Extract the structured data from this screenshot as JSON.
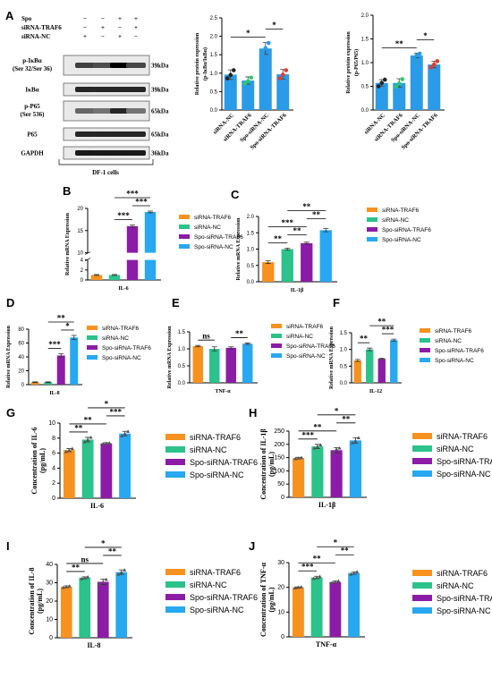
{
  "colors": {
    "orange": "#F7921E",
    "green": "#2BC28B",
    "purple": "#8C1CA7",
    "blue": "#27A8F0",
    "panelA": "#2A9BE8",
    "panelA_green": "#2AC96E",
    "panelA_red": "#E8392C"
  },
  "panelA": {
    "letter": "A",
    "blot": {
      "treat_labels": [
        "Spo",
        "siRNA-TRAF6",
        "siRNA-NC"
      ],
      "treat_signs": [
        [
          "−",
          "−",
          "+",
          "+"
        ],
        [
          "−",
          "+",
          "−",
          "+"
        ],
        [
          "+",
          "−",
          "+",
          "−"
        ]
      ],
      "bands": [
        {
          "name": "p-IκBα",
          "sub": "(Ser 32/Ser 36)",
          "kda": "39kDa"
        },
        {
          "name": "IκBα",
          "sub": "",
          "kda": "39kDa"
        },
        {
          "name": "p-P65",
          "sub": "(Ser 536)",
          "kda": "65kDa"
        },
        {
          "name": "P65",
          "sub": "",
          "kda": "65kDa"
        },
        {
          "name": "GAPDH",
          "sub": "",
          "kda": "36kDa"
        }
      ],
      "band_intensity": [
        [
          0.75,
          0.7,
          1.0,
          0.72
        ],
        [
          0.85,
          0.85,
          0.85,
          0.85
        ],
        [
          0.6,
          0.55,
          0.85,
          0.55
        ],
        [
          0.85,
          0.85,
          0.85,
          0.85
        ],
        [
          0.9,
          0.9,
          0.9,
          0.9
        ]
      ],
      "caption": "DF-1 cells"
    }
  },
  "chart_data": [
    {
      "id": "A1",
      "type": "bar",
      "categories": [
        "siRNA-NC",
        "siRNA-TRAF6",
        "Spo-siRNA-NC",
        "Spo-siRNA-TRAF6"
      ],
      "values": [
        0.96,
        0.8,
        1.67,
        0.97
      ],
      "errors": [
        0.13,
        0.1,
        0.16,
        0.13
      ],
      "points": [
        [
          0.86,
          0.95,
          1.08
        ],
        [
          0.72,
          0.78,
          0.88
        ],
        [
          1.5,
          1.68,
          1.82
        ],
        [
          0.86,
          0.96,
          1.08
        ]
      ],
      "ylabel": "Relative protein expression",
      "ylabel2": "(p-IκBα/IκBα)",
      "ylim": [
        0,
        2.5
      ],
      "ticks": [
        0,
        0.5,
        1.0,
        1.5,
        2.0,
        2.5
      ],
      "bar_color": "#2A9BE8",
      "point_colors": [
        "#222222",
        "#2AC96E",
        "#2A9BE8",
        "#E8392C"
      ],
      "sig": [
        {
          "a": 0,
          "b": 2,
          "t": "*"
        },
        {
          "a": 2,
          "b": 3,
          "t": "*"
        }
      ]
    },
    {
      "id": "A2",
      "type": "bar",
      "categories": [
        "siRNA-NC",
        "siRNA-TRAF6",
        "Spo-siRNA-NC",
        "Spo-siRNA-TRAF6"
      ],
      "values": [
        0.57,
        0.57,
        1.15,
        0.96
      ],
      "errors": [
        0.07,
        0.09,
        0.05,
        0.07
      ],
      "points": [
        [
          0.5,
          0.57,
          0.64
        ],
        [
          0.49,
          0.56,
          0.65
        ],
        [
          1.1,
          1.15,
          1.19
        ],
        [
          0.9,
          0.96,
          1.03
        ]
      ],
      "ylabel": "Relative protein expression",
      "ylabel2": "(p-P65/P65)",
      "ylim": [
        0,
        2.0
      ],
      "ticks": [
        0,
        0.5,
        1.0,
        1.5,
        2.0
      ],
      "bar_color": "#2A9BE8",
      "point_colors": [
        "#222222",
        "#2AC96E",
        "#2A9BE8",
        "#E8392C"
      ],
      "sig": [
        {
          "a": 0,
          "b": 2,
          "t": "**"
        },
        {
          "a": 2,
          "b": 3,
          "t": "*"
        }
      ]
    },
    {
      "id": "B",
      "type": "bar",
      "xlabel": "IL-6",
      "ylabel": "Relative mRNA Expression",
      "series": [
        "siRNA-TRAF6",
        "siRNA-NC",
        "Spo-siRNA-TRAF6",
        "Spo-siRNA-NC"
      ],
      "values": [
        1.0,
        1.0,
        16.0,
        19.2
      ],
      "errors": [
        0.1,
        0.1,
        0.25,
        0.2
      ],
      "broken_axis": {
        "lower": [
          0,
          4
        ],
        "upper": [
          10,
          20
        ],
        "lower_ticks": [
          0,
          2,
          4
        ],
        "upper_ticks": [
          10,
          15,
          20
        ]
      },
      "sig": [
        {
          "a": 1,
          "b": 2,
          "t": "***"
        },
        {
          "a": 2,
          "b": 3,
          "t": "***"
        },
        {
          "a": 1,
          "b": 3,
          "t": "***"
        }
      ]
    },
    {
      "id": "C",
      "type": "bar",
      "xlabel": "IL-1β",
      "ylabel": "Relative mRNA Expression",
      "series": [
        "siRNA-TRAF6",
        "siRNA-NC",
        "Spo-siRNA-TRAF6",
        "Spo-siRNA-NC"
      ],
      "values": [
        0.6,
        1.0,
        1.18,
        1.58
      ],
      "errors": [
        0.04,
        0.03,
        0.03,
        0.05
      ],
      "ylim": [
        0,
        2.0
      ],
      "ticks": [
        0,
        0.5,
        1.0,
        1.5,
        2.0
      ],
      "sig": [
        {
          "a": 0,
          "b": 1,
          "t": "**"
        },
        {
          "a": 1,
          "b": 2,
          "t": "**"
        },
        {
          "a": 0,
          "b": 2,
          "t": "***"
        },
        {
          "a": 2,
          "b": 3,
          "t": "**"
        },
        {
          "a": 1,
          "b": 3,
          "t": "**"
        }
      ]
    },
    {
      "id": "D",
      "type": "bar",
      "xlabel": "IL-8",
      "ylabel": "Relative mRNA Expression",
      "series": [
        "siRNA-TRAF6",
        "siRNA-NC",
        "Spo-siRNA-TRAF6",
        "Spo-siRNA-NC"
      ],
      "values": [
        3.5,
        3.5,
        42,
        68
      ],
      "errors": [
        0.5,
        0.5,
        2.5,
        3
      ],
      "ylim": [
        0,
        80
      ],
      "ticks": [
        0,
        20,
        40,
        60,
        80
      ],
      "sig": [
        {
          "a": 1,
          "b": 2,
          "t": "***"
        },
        {
          "a": 2,
          "b": 3,
          "t": "*"
        },
        {
          "a": 1,
          "b": 3,
          "t": "**"
        }
      ]
    },
    {
      "id": "E",
      "type": "bar",
      "xlabel": "TNF-α",
      "ylabel": "Relative mRNA Expression",
      "series": [
        "siRNA-TRAF6",
        "siRNA-NC",
        "Spo-siRNA-TRAF6",
        "Spo-siRNA-NC"
      ],
      "values": [
        1.08,
        1.0,
        1.03,
        1.15
      ],
      "errors": [
        0.02,
        0.06,
        0.03,
        0.02
      ],
      "ylim": [
        0,
        1.5
      ],
      "ticks": [
        0,
        0.5,
        1.0,
        1.5
      ],
      "sig": [
        {
          "a": 0,
          "b": 1,
          "t": "ns"
        },
        {
          "a": 2,
          "b": 3,
          "t": "**"
        }
      ]
    },
    {
      "id": "F",
      "type": "bar",
      "xlabel": "IL-12",
      "ylabel": "Relative mRNA Expression",
      "series": [
        "siRNA-TRAF6",
        "siRNA-NC",
        "Spo-siRNA-TRAF6",
        "Spo-siRNA-NC"
      ],
      "values": [
        0.67,
        1.0,
        0.72,
        1.28
      ],
      "errors": [
        0.03,
        0.04,
        0.02,
        0.03
      ],
      "ylim": [
        0,
        1.5
      ],
      "ticks": [
        0,
        0.5,
        1.0,
        1.5
      ],
      "sig": [
        {
          "a": 0,
          "b": 1,
          "t": "**"
        },
        {
          "a": 2,
          "b": 3,
          "t": "***"
        },
        {
          "a": 1,
          "b": 3,
          "t": "**"
        }
      ]
    },
    {
      "id": "G",
      "type": "bar",
      "xlabel": "IL-6",
      "ylabel": "Concentration of IL-6",
      "ylabel2": "(pg/mL)",
      "series": [
        "siRNA-TRAF6",
        "siRNA-NC",
        "Spo-siRNA-TRAF6",
        "Spo-siRNA-NC"
      ],
      "values": [
        6.4,
        7.8,
        7.3,
        8.6
      ],
      "errors": [
        0.2,
        0.3,
        0.1,
        0.3
      ],
      "points": [
        [
          6.2,
          6.4,
          6.6
        ],
        [
          7.5,
          7.8,
          8.1
        ],
        [
          7.25,
          7.3,
          7.35
        ],
        [
          8.3,
          8.6,
          8.9
        ]
      ],
      "ylim": [
        0,
        10
      ],
      "ticks": [
        0,
        2,
        4,
        6,
        8,
        10
      ],
      "sig": [
        {
          "a": 0,
          "b": 1,
          "t": "**"
        },
        {
          "a": 0,
          "b": 2,
          "t": "**"
        },
        {
          "a": 2,
          "b": 3,
          "t": "***"
        },
        {
          "a": 1,
          "b": 3,
          "t": "*"
        }
      ]
    },
    {
      "id": "H",
      "type": "bar",
      "xlabel": "IL-1β",
      "ylabel": "Concentration of IL-1β",
      "ylabel2": "(pg/mL)",
      "series": [
        "siRNA-TRAF6",
        "siRNA-NC",
        "Spo-siRNA-TRAF6",
        "Spo-siRNA-NC"
      ],
      "values": [
        148,
        192,
        178,
        215
      ],
      "errors": [
        3,
        8,
        10,
        10
      ],
      "points": [
        [
          146,
          148,
          150
        ],
        [
          186,
          192,
          198
        ],
        [
          168,
          182,
          186
        ],
        [
          206,
          214,
          225
        ]
      ],
      "ylim": [
        0,
        250
      ],
      "ticks": [
        0,
        50,
        100,
        150,
        200,
        250
      ],
      "sig": [
        {
          "a": 0,
          "b": 1,
          "t": "***"
        },
        {
          "a": 0,
          "b": 2,
          "t": "**"
        },
        {
          "a": 2,
          "b": 3,
          "t": "**"
        },
        {
          "a": 1,
          "b": 3,
          "t": "*"
        }
      ]
    },
    {
      "id": "I",
      "type": "bar",
      "xlabel": "IL-8",
      "ylabel": "Concentration of IL-8",
      "ylabel2": "(pg/mL)",
      "series": [
        "siRNA-TRAF6",
        "siRNA-NC",
        "Spo-siRNA-TRAF6",
        "Spo-siRNA-NC"
      ],
      "values": [
        27.8,
        32.7,
        30.5,
        35.8
      ],
      "errors": [
        0.5,
        0.5,
        1.5,
        1.2
      ],
      "points": [
        [
          27.4,
          27.8,
          28.2
        ],
        [
          32.2,
          32.7,
          33.2
        ],
        [
          29.2,
          30.5,
          31.8
        ],
        [
          34.6,
          35.8,
          37.0
        ]
      ],
      "ylim": [
        0,
        40
      ],
      "ticks": [
        0,
        10,
        20,
        30,
        40
      ],
      "sig": [
        {
          "a": 0,
          "b": 1,
          "t": "**"
        },
        {
          "a": 0,
          "b": 2,
          "t": "ns"
        },
        {
          "a": 2,
          "b": 3,
          "t": "**"
        },
        {
          "a": 1,
          "b": 3,
          "t": "*"
        }
      ]
    },
    {
      "id": "J",
      "type": "bar",
      "xlabel": "TNF-α",
      "ylabel": "Concentration of TNF-α",
      "ylabel2": "(pg/mL)",
      "series": [
        "siRNA-TRAF6",
        "siRNA-NC",
        "Spo-siRNA-TRAF6",
        "Spo-siRNA-NC"
      ],
      "values": [
        20.0,
        24.0,
        22.2,
        25.8
      ],
      "errors": [
        0.2,
        0.5,
        0.4,
        0.5
      ],
      "points": [
        [
          19.8,
          20.0,
          20.2
        ],
        [
          23.6,
          24.0,
          24.4
        ],
        [
          21.8,
          22.2,
          22.6
        ],
        [
          25.3,
          25.8,
          26.3
        ]
      ],
      "ylim": [
        0,
        30
      ],
      "ticks": [
        0,
        10,
        20,
        30
      ],
      "sig": [
        {
          "a": 0,
          "b": 1,
          "t": "***"
        },
        {
          "a": 0,
          "b": 2,
          "t": "**"
        },
        {
          "a": 2,
          "b": 3,
          "t": "**"
        },
        {
          "a": 1,
          "b": 3,
          "t": "*"
        }
      ]
    }
  ],
  "panel_letters": [
    "B",
    "C",
    "D",
    "E",
    "F",
    "G",
    "H",
    "I",
    "J"
  ]
}
